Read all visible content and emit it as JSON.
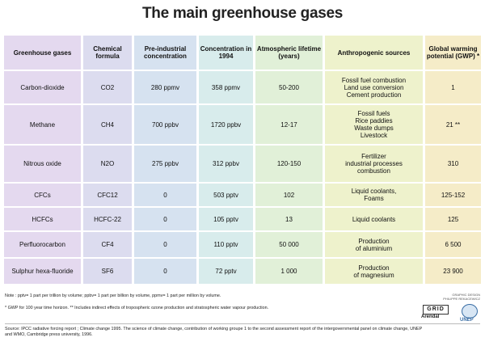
{
  "title": "The main greenhouse gases",
  "columns": {
    "gas": "Greenhouse gases",
    "formula": "Chemical formula",
    "preindustrial": "Pre-industrial concentration",
    "conc1994": "Concentration in 1994",
    "lifetime": "Atmospheric lifetime (years)",
    "sources": "Anthropogenic sources",
    "gwp": "Global warming potential (GWP) *"
  },
  "rows": [
    {
      "gas": "Carbon-dioxide",
      "formula": "CO2",
      "preindustrial": "280 ppmv",
      "conc1994": "358 ppmv",
      "lifetime": "50-200",
      "sources": "Fossil fuel combustion\nLand use conversion\nCement production",
      "gwp": "1"
    },
    {
      "gas": "Methane",
      "formula": "CH4",
      "preindustrial": "700 ppbv",
      "conc1994": "1720 ppbv",
      "lifetime": "12-17",
      "sources": "Fossil fuels\nRice paddies\nWaste dumps\nLivestock",
      "gwp": "21 **"
    },
    {
      "gas": "Nitrous oxide",
      "formula": "N2O",
      "preindustrial": "275 ppbv",
      "conc1994": "312 ppbv",
      "lifetime": "120-150",
      "sources": "Fertilizer\nindustrial processes\ncombustion",
      "gwp": "310"
    },
    {
      "gas": "CFCs",
      "formula": "CFC12",
      "preindustrial": "0",
      "conc1994": "503 pptv",
      "lifetime": "102",
      "sources": "Liquid coolants,\nFoams",
      "gwp": "125-152"
    },
    {
      "gas": "HCFCs",
      "formula": "HCFC-22",
      "preindustrial": "0",
      "conc1994": "105 pptv",
      "lifetime": "13",
      "sources": "Liquid coolants",
      "gwp": "125"
    },
    {
      "gas": "Perfluorocarbon",
      "formula": "CF4",
      "preindustrial": "0",
      "conc1994": "110 pptv",
      "lifetime": "50 000",
      "sources": "Production\nof aluminium",
      "gwp": "6 500"
    },
    {
      "gas": "Sulphur hexa-fluoride",
      "formula": "SF6",
      "preindustrial": "0",
      "conc1994": "72 pptv",
      "lifetime": "1 000",
      "sources": "Production\nof magnesium",
      "gwp": "23 900"
    }
  ],
  "notes": {
    "units": "Note : pptv= 1 part per trillion by volume; ppbv= 1 part per billion by volume, ppmv= 1 part per million by volume.",
    "gwp": "* GWP for 100 year time horizon.  ** Includes indirect effects of tropospheric ozone production and stratospheric water vapour production.",
    "source": "Source: IPCC radiative forcing report ; Climate change 1995. The science of climate change, contribution of working groupe 1 to the second assessment report of the intergovernmental panel on climate change, UNEP and WMO, Cambridge press university,  1996."
  },
  "credits": {
    "design": "GRAPHIC DESIGN\nPHILIPPE REKACEWICZ",
    "grid": "GRID",
    "arendal": "Arendal",
    "unep": "UNEP"
  },
  "colors": {
    "band_gas": "#e4d9ef",
    "band_formula": "#dcdcef",
    "band_pre": "#d6e2f0",
    "band_conc": "#d8ecec",
    "band_life": "#e1f0d8",
    "band_src": "#eef2cc",
    "band_gwp": "#f5ecc8"
  }
}
